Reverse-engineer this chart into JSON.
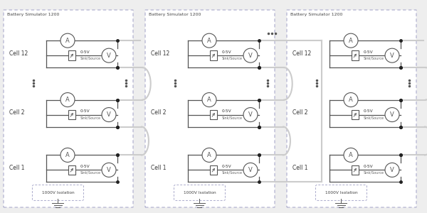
{
  "bg_color": "#eeeeee",
  "panel_bg": "#ffffff",
  "line_color": "#555555",
  "border_color": "#aaaacc",
  "circle_fill": "#ffffff",
  "dot_color": "#222222",
  "connector_color": "#cccccc",
  "title": "Battery Simulator 1200",
  "cell_labels": [
    "Cell 12",
    "Cell 2",
    "Cell 1"
  ],
  "isolation_text": "1000V Isolation",
  "voltage_text": "0-5V",
  "sink_source_text": "Sink/Source",
  "panels": [
    {
      "top_dots": false,
      "bottom_curve": false
    },
    {
      "top_dots": true,
      "bottom_curve": true
    },
    {
      "top_dots": false,
      "bottom_curve": false
    }
  ]
}
